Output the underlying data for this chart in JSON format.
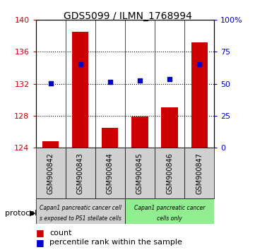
{
  "title": "GDS5099 / ILMN_1768994",
  "samples": [
    "GSM900842",
    "GSM900843",
    "GSM900844",
    "GSM900845",
    "GSM900846",
    "GSM900847"
  ],
  "counts": [
    124.8,
    138.5,
    126.5,
    127.9,
    129.0,
    137.2
  ],
  "percentile_ranks": [
    50.5,
    65.5,
    51.5,
    52.5,
    53.5,
    65.5
  ],
  "ylim_left": [
    124,
    140
  ],
  "ylim_right": [
    0,
    100
  ],
  "yticks_left": [
    124,
    128,
    132,
    136,
    140
  ],
  "yticks_right": [
    0,
    25,
    50,
    75,
    100
  ],
  "yticklabels_right": [
    "0",
    "25",
    "50",
    "75",
    "100%"
  ],
  "bar_color": "#cc0000",
  "dot_color": "#0000cc",
  "bar_bottom": 124,
  "group1_indices": [
    0,
    1,
    2
  ],
  "group2_indices": [
    3,
    4,
    5
  ],
  "group1_color": "#d0d0d0",
  "group2_color": "#90ee90",
  "group1_line1": "Capan1 pancreatic cancer cell",
  "group1_line2": "s exposed to PS1 stellate cells",
  "group2_line1": "Capan1 pancreatic cancer",
  "group2_line2": "cells only",
  "protocol_label": "protocol",
  "legend_count_label": "count",
  "legend_percentile_label": "percentile rank within the sample",
  "bg_color": "#ffffff",
  "plot_bg_color": "#ffffff",
  "tick_label_color_left": "#cc0000",
  "tick_label_color_right": "#0000cc"
}
